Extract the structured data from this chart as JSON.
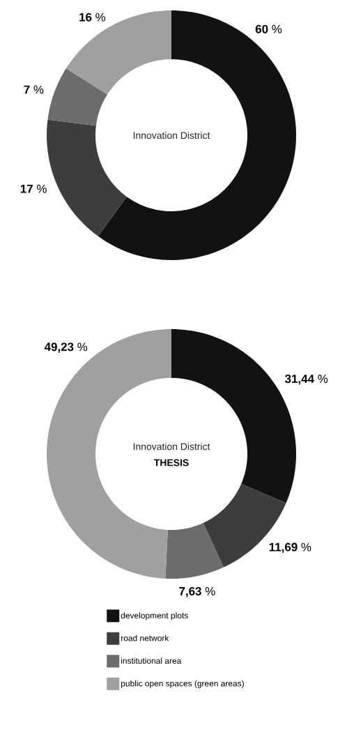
{
  "chart_data": [
    {
      "type": "donut",
      "title": "Innovation District",
      "categories": [
        null,
        null,
        null,
        null
      ],
      "values": [
        60,
        17,
        7,
        16
      ],
      "colors": [
        "#121212",
        "#3d3d3d",
        "#6c6c6c",
        "#a0a0a0"
      ],
      "value_labels": [
        "**60** %",
        "**17** %",
        "**7** %",
        "**16** %"
      ]
    },
    {
      "type": "donut",
      "title": "Innovation District",
      "subtitle": "THESIS",
      "categories": [
        "development plots",
        "road network",
        "institutional area",
        "public open spaces (green areas)"
      ],
      "values": [
        31.44,
        11.69,
        7.63,
        49.23
      ],
      "colors": [
        "#121212",
        "#3d3d3d",
        "#6c6c6c",
        "#a0a0a0"
      ],
      "value_labels": [
        "**31,44** %",
        "**11,69** %",
        "**7,63** %",
        "**49,23** %"
      ],
      "legend": "bottom"
    }
  ]
}
